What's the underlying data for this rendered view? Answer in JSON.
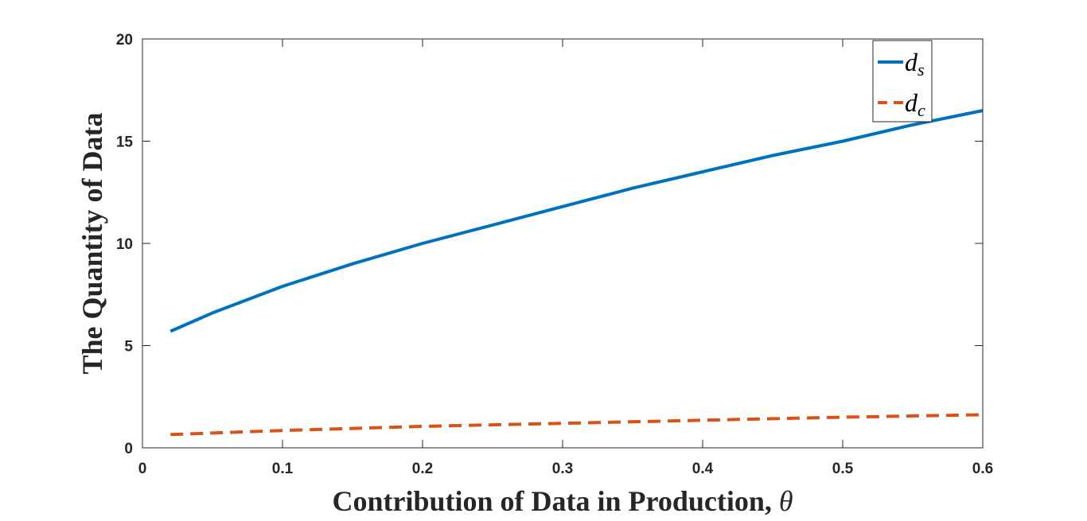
{
  "chart_data": {
    "type": "line",
    "xlabel": "Contribution of Data in Production, ",
    "xlabel_symbol": "θ",
    "ylabel": "The Quantity of Data",
    "xlim": [
      0,
      0.6
    ],
    "ylim": [
      0,
      20
    ],
    "xticks": [
      0,
      0.1,
      0.2,
      0.3,
      0.4,
      0.5,
      0.6
    ],
    "xtick_labels": [
      "0",
      "0.1",
      "0.2",
      "0.3",
      "0.4",
      "0.5",
      "0.6"
    ],
    "yticks": [
      0,
      5,
      10,
      15,
      20
    ],
    "ytick_labels": [
      "0",
      "5",
      "10",
      "15",
      "20"
    ],
    "grid": false,
    "legend_position": "top-right",
    "series": [
      {
        "name": "d_s",
        "legend_symbol": "d",
        "legend_subscript": "s",
        "color": "#0072BD",
        "line_style": "solid",
        "x": [
          0.02,
          0.05,
          0.1,
          0.15,
          0.2,
          0.25,
          0.3,
          0.35,
          0.4,
          0.45,
          0.5,
          0.55,
          0.6
        ],
        "y": [
          5.7,
          6.6,
          7.9,
          9.0,
          10.0,
          10.9,
          11.8,
          12.7,
          13.5,
          14.3,
          15.0,
          15.8,
          16.5
        ]
      },
      {
        "name": "d_c",
        "legend_symbol": "d",
        "legend_subscript": "c",
        "color": "#D95319",
        "line_style": "dashed",
        "x": [
          0.02,
          0.1,
          0.2,
          0.3,
          0.4,
          0.5,
          0.6
        ],
        "y": [
          0.65,
          0.85,
          1.05,
          1.2,
          1.35,
          1.5,
          1.62
        ]
      }
    ]
  }
}
